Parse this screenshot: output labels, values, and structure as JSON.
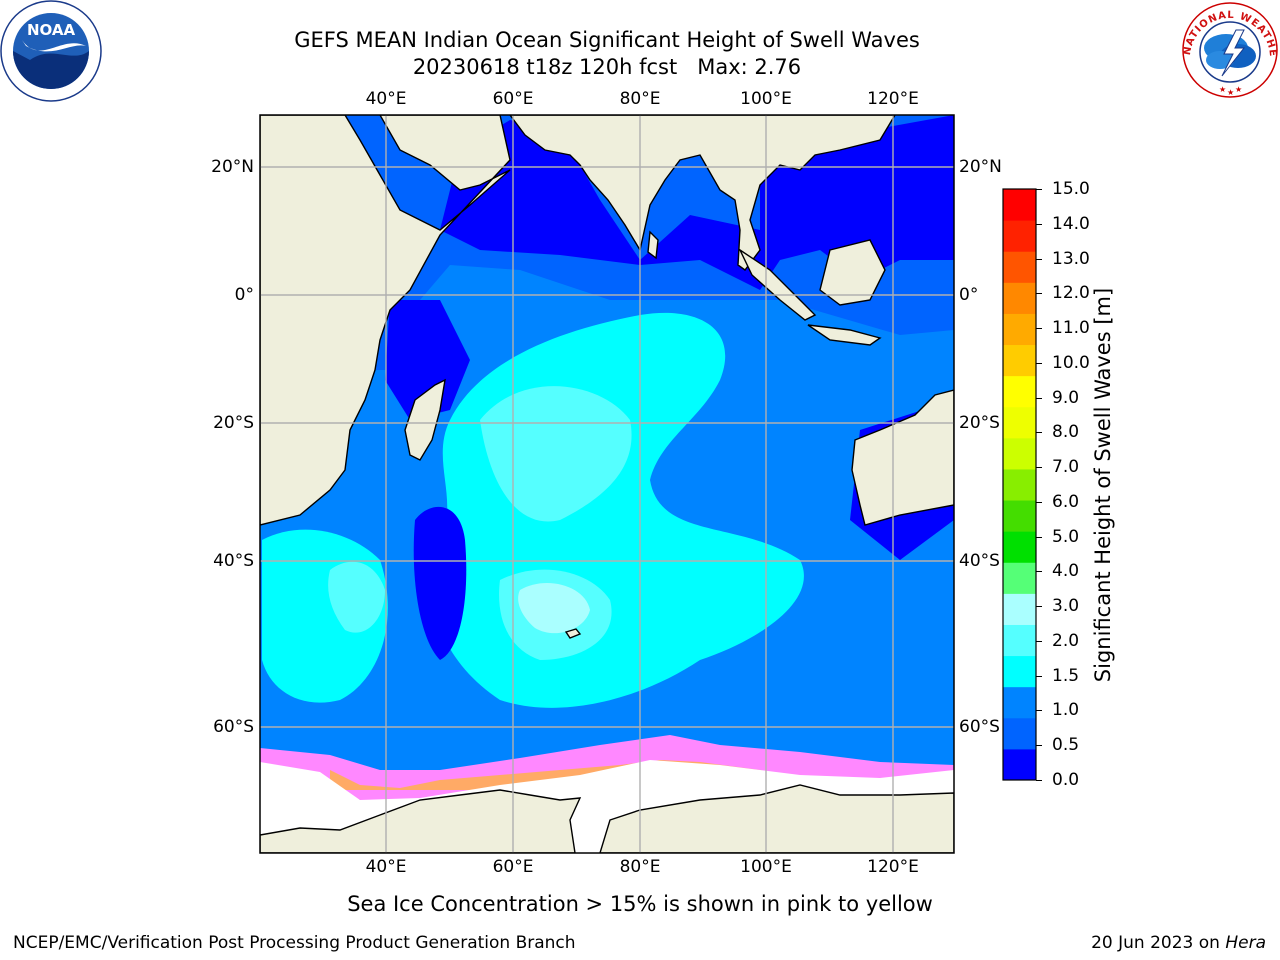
{
  "title": {
    "line1": "GEFS MEAN Indian Ocean Significant Height of Swell Waves",
    "line2": "20230618 t18z 120h fcst   Max: 2.76"
  },
  "map": {
    "lon_range": [
      20,
      130
    ],
    "lat_range": [
      -78,
      28
    ],
    "lon_ticks": [
      "40°E",
      "60°E",
      "80°E",
      "100°E",
      "120°E"
    ],
    "lat_ticks": [
      "20°N",
      "0°",
      "20°S",
      "40°S",
      "60°S"
    ],
    "lon_values": [
      40,
      60,
      80,
      100,
      120
    ],
    "lat_values": [
      20,
      0,
      -20,
      -40,
      -60
    ],
    "land_color": "#efefdc",
    "ice_colors": [
      "#ff88ff",
      "#ff66cc",
      "#ffaa66",
      "#ffcc66"
    ]
  },
  "colorbar": {
    "title": "Significant Height of Swell Waves [m]",
    "tick_labels": [
      "0.0",
      "0.5",
      "1.0",
      "1.5",
      "2.0",
      "3.0",
      "4.0",
      "5.0",
      "6.0",
      "7.0",
      "8.0",
      "9.0",
      "10.0",
      "11.0",
      "12.0",
      "13.0",
      "14.0",
      "15.0"
    ],
    "colors": [
      "#0000ff",
      "#0064ff",
      "#0084ff",
      "#00ffff",
      "#55ffff",
      "#aaffff",
      "#55ff77",
      "#00e000",
      "#44dd00",
      "#88ee00",
      "#ccff00",
      "#eeff00",
      "#ffff00",
      "#ffcc00",
      "#ffaa00",
      "#ff8800",
      "#ff5500",
      "#ff2200",
      "#ff0000"
    ]
  },
  "note": "Sea Ice Concentration > 15% is shown in pink to yellow",
  "footer": {
    "left": "NCEP/EMC/Verification Post Processing Product Generation Branch",
    "right_date": "20 Jun 2023 on",
    "right_host": "Hera"
  },
  "logos": {
    "noaa_text": "NOAA",
    "nws_text": "NATIONAL WEATHER SERVICE"
  }
}
